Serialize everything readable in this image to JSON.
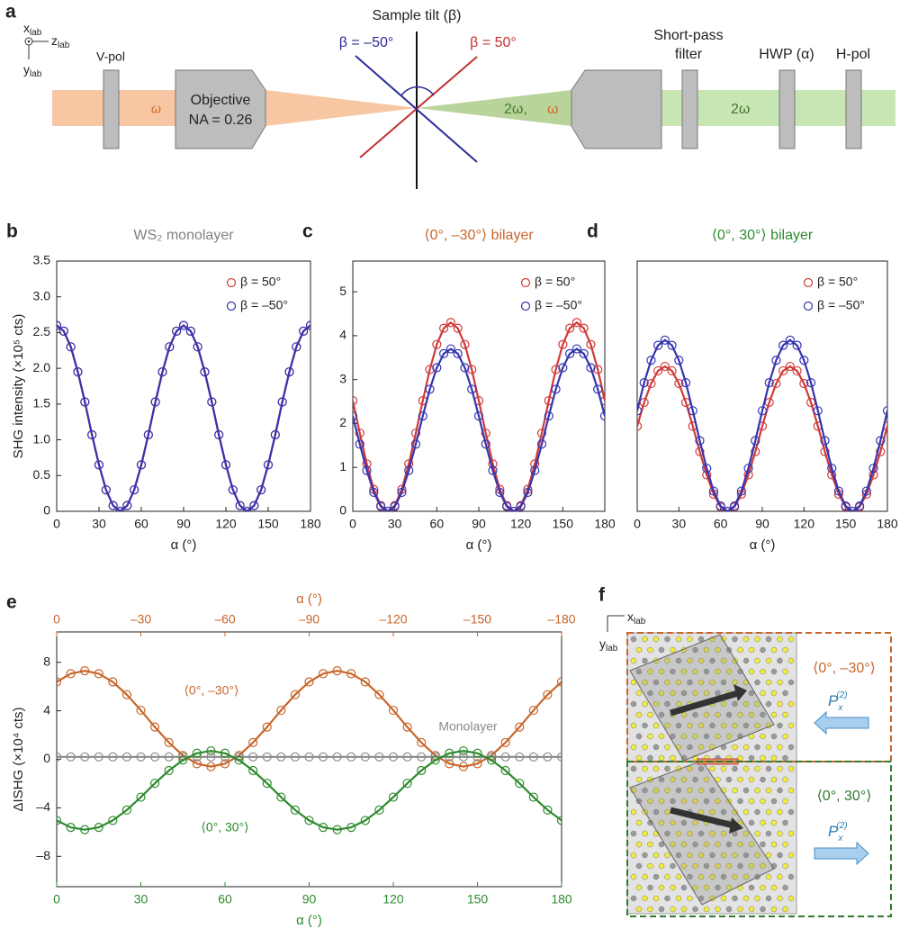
{
  "diagram_a": {
    "panel": "a",
    "axis_x": "x",
    "axis_z": "z",
    "axis_y": "y",
    "axis_sub": "lab",
    "vpol": "V-pol",
    "objective": "Objective",
    "na": "NA = 0.26",
    "omega": "ω",
    "tilt": "Sample tilt (β)",
    "beta_neg": "β = –50°",
    "beta_pos": "β = 50°",
    "two_omega_comma": "2ω,",
    "filter1": "Short-pass",
    "filter2": "filter",
    "hwp": "HWP (α)",
    "hpol": "H-pol",
    "two_omega": "2ω"
  },
  "diagram_f": {
    "panel": "f",
    "axis_x": "x",
    "axis_y": "y",
    "axis_sub": "lab",
    "top_label": "⟨0°, –30°⟩",
    "bottom_label": "⟨0°, 30°⟩",
    "p": "P",
    "p_sub": "x",
    "p_sup": "(2)"
  },
  "chart_data": [
    {
      "type": "line",
      "panel": "b",
      "title": "WS₂ monolayer",
      "title_color": "#808080",
      "xlabel": "α (°)",
      "ylabel": "SHG intensity (×10⁵ cts)",
      "legend": "upper right",
      "markers": true,
      "x": [
        0,
        5,
        10,
        15,
        20,
        25,
        30,
        35,
        40,
        45,
        50,
        55,
        60,
        65,
        70,
        75,
        80,
        85,
        90,
        95,
        100,
        105,
        110,
        115,
        120,
        125,
        130,
        135,
        140,
        145,
        150,
        155,
        160,
        165,
        170,
        175,
        180
      ],
      "xlim": [
        0,
        180
      ],
      "xticks": [
        0,
        30,
        60,
        90,
        120,
        150,
        180
      ],
      "ylim": [
        0,
        3.5
      ],
      "yticks": [
        0,
        0.5,
        {
          "value": 1,
          "label": "1.0"
        },
        1.5,
        {
          "value": 2,
          "label": "2.0"
        },
        2.5,
        {
          "value": 3,
          "label": "3.0"
        },
        3.5
      ],
      "series": [
        {
          "name": "β = 50°",
          "color": "#d03a3a",
          "values": [
            2.6,
            2.52,
            2.3,
            1.95,
            1.53,
            1.07,
            0.65,
            0.3,
            0.08,
            0,
            0.08,
            0.3,
            0.65,
            1.07,
            1.53,
            1.95,
            2.3,
            2.52,
            2.6,
            2.52,
            2.3,
            1.95,
            1.53,
            1.07,
            0.65,
            0.3,
            0.08,
            0,
            0.08,
            0.3,
            0.65,
            1.07,
            1.53,
            1.95,
            2.3,
            2.52,
            2.6
          ]
        },
        {
          "name": "β = –50°",
          "color": "#3535b0",
          "values": [
            2.6,
            2.52,
            2.3,
            1.95,
            1.53,
            1.07,
            0.65,
            0.3,
            0.08,
            0,
            0.08,
            0.3,
            0.65,
            1.07,
            1.53,
            1.95,
            2.3,
            2.52,
            2.6,
            2.52,
            2.3,
            1.95,
            1.53,
            1.07,
            0.65,
            0.3,
            0.08,
            0,
            0.08,
            0.3,
            0.65,
            1.07,
            1.53,
            1.95,
            2.3,
            2.52,
            2.6
          ]
        }
      ]
    },
    {
      "type": "line",
      "panel": "c",
      "title": "⟨0°, –30°⟩ bilayer",
      "title_color": "#c8652a",
      "xlabel": "α (°)",
      "legend": "upper right",
      "markers": true,
      "x": [
        0,
        5,
        10,
        15,
        20,
        25,
        30,
        35,
        40,
        45,
        50,
        55,
        60,
        65,
        70,
        75,
        80,
        85,
        90,
        95,
        100,
        105,
        110,
        115,
        120,
        125,
        130,
        135,
        140,
        145,
        150,
        155,
        160,
        165,
        170,
        175,
        180
      ],
      "xlim": [
        0,
        180
      ],
      "xticks": [
        0,
        30,
        60,
        90,
        120,
        150,
        180
      ],
      "ylim": [
        0,
        5.7
      ],
      "yticks": [
        0,
        1,
        2,
        3,
        4,
        5
      ],
      "series": [
        {
          "name": "β = 50°",
          "color": "#d03a3a",
          "values": [
            2.52,
            1.78,
            1.08,
            0.5,
            0.13,
            0,
            0.13,
            0.5,
            1.08,
            1.78,
            2.52,
            3.23,
            3.8,
            4.17,
            4.3,
            4.17,
            3.8,
            3.23,
            2.52,
            1.78,
            1.08,
            0.5,
            0.13,
            0,
            0.13,
            0.5,
            1.08,
            1.78,
            2.52,
            3.23,
            3.8,
            4.17,
            4.3,
            4.17,
            3.8,
            3.23,
            2.52
          ]
        },
        {
          "name": "β = –50°",
          "color": "#3535b0",
          "values": [
            2.17,
            1.53,
            0.93,
            0.43,
            0.11,
            0,
            0.11,
            0.43,
            0.93,
            1.53,
            2.17,
            2.78,
            3.27,
            3.59,
            3.7,
            3.59,
            3.27,
            2.78,
            2.17,
            1.53,
            0.93,
            0.43,
            0.11,
            0,
            0.11,
            0.43,
            0.93,
            1.53,
            2.17,
            2.78,
            3.27,
            3.59,
            3.7,
            3.59,
            3.27,
            2.78,
            2.17
          ]
        }
      ]
    },
    {
      "type": "line",
      "panel": "d",
      "title": "⟨0°, 30°⟩ bilayer",
      "title_color": "#2e8b2e",
      "xlabel": "α (°)",
      "legend": "upper right",
      "markers": true,
      "x": [
        0,
        5,
        10,
        15,
        20,
        25,
        30,
        35,
        40,
        45,
        50,
        55,
        60,
        65,
        70,
        75,
        80,
        85,
        90,
        95,
        100,
        105,
        110,
        115,
        120,
        125,
        130,
        135,
        140,
        145,
        150,
        155,
        160,
        165,
        170,
        175,
        180
      ],
      "xlim": [
        0,
        180
      ],
      "xticks": [
        0,
        30,
        60,
        90,
        120,
        150,
        180
      ],
      "ylim": [
        0,
        5.7
      ],
      "series": [
        {
          "name": "β = 50°",
          "color": "#d03a3a",
          "values": [
            1.94,
            2.48,
            2.91,
            3.2,
            3.3,
            3.2,
            2.91,
            2.48,
            1.94,
            1.36,
            0.83,
            0.39,
            0.1,
            0,
            0.1,
            0.39,
            0.83,
            1.36,
            1.94,
            2.48,
            2.91,
            3.2,
            3.3,
            3.2,
            2.91,
            2.48,
            1.94,
            1.36,
            0.83,
            0.39,
            0.1,
            0,
            0.1,
            0.39,
            0.83,
            1.36,
            1.94
          ]
        },
        {
          "name": "β = –50°",
          "color": "#3535b0",
          "values": [
            2.29,
            2.93,
            3.44,
            3.78,
            3.9,
            3.78,
            3.44,
            2.93,
            2.29,
            1.61,
            0.98,
            0.46,
            0.12,
            0,
            0.12,
            0.46,
            0.98,
            1.61,
            2.29,
            2.93,
            3.44,
            3.78,
            3.9,
            3.78,
            3.44,
            2.93,
            2.29,
            1.61,
            0.98,
            0.46,
            0.12,
            0,
            0.12,
            0.46,
            0.98,
            1.61,
            2.29
          ]
        }
      ]
    },
    {
      "type": "line",
      "panel": "e",
      "xlabel": "α (°)",
      "x2label": "α (°)",
      "ylabel": "ΔISHG (×10⁴ cts)",
      "markers": true,
      "xaxis_color": "#2e8b2e",
      "x2axis_color": "#c8652a",
      "x": [
        0,
        5,
        10,
        15,
        20,
        25,
        30,
        35,
        40,
        45,
        50,
        55,
        60,
        65,
        70,
        75,
        80,
        85,
        90,
        95,
        100,
        105,
        110,
        115,
        120,
        125,
        130,
        135,
        140,
        145,
        150,
        155,
        160,
        165,
        170,
        175,
        180
      ],
      "x2": [
        0,
        -5,
        -10,
        -15,
        -20,
        -25,
        -30,
        -35,
        -40,
        -45,
        -50,
        -55,
        -60,
        -65,
        -70,
        -75,
        -80,
        -85,
        -90,
        -95,
        -100,
        -105,
        -110,
        -115,
        -120,
        -125,
        -130,
        -135,
        -140,
        -145,
        -150,
        -155,
        -160,
        -165,
        -170,
        -175,
        -180
      ],
      "xlim": [
        0,
        180
      ],
      "xticks": [
        0,
        30,
        60,
        90,
        120,
        150,
        180
      ],
      "x2lim": [
        0,
        -180
      ],
      "x2ticks": [
        0,
        {
          "value": -30,
          "label": "–30"
        },
        {
          "value": -60,
          "label": "–60"
        },
        {
          "value": -90,
          "label": "–90"
        },
        {
          "value": -120,
          "label": "–120"
        },
        {
          "value": -150,
          "label": "–150"
        },
        {
          "value": -180,
          "label": "–180"
        }
      ],
      "ylim": [
        -10.5,
        10.5
      ],
      "yticks": [
        {
          "value": -8,
          "label": "–8"
        },
        {
          "value": -4,
          "label": "–4"
        },
        0,
        4,
        8
      ],
      "series": [
        {
          "name": "⟨0°, –30°⟩",
          "color": "#c8652a",
          "axis": "x2",
          "values": [
            6.38,
            7.06,
            7.3,
            7.06,
            6.38,
            5.33,
            4.04,
            2.66,
            1.38,
            0.32,
            -0.36,
            -0.6,
            -0.36,
            0.32,
            1.38,
            2.66,
            4.04,
            5.33,
            6.38,
            7.06,
            7.3,
            7.06,
            6.38,
            5.33,
            4.04,
            2.66,
            1.38,
            0.32,
            -0.36,
            -0.6,
            -0.36,
            0.32,
            1.38,
            2.66,
            4.04,
            5.33,
            6.38
          ]
        },
        {
          "name": "Monolayer",
          "color": "#8a8a8a",
          "values": [
            0.2,
            0.2,
            0.2,
            0.2,
            0.2,
            0.2,
            0.2,
            0.2,
            0.2,
            0.2,
            0.2,
            0.2,
            0.2,
            0.2,
            0.2,
            0.2,
            0.2,
            0.2,
            0.2,
            0.2,
            0.2,
            0.2,
            0.2,
            0.2,
            0.2,
            0.2,
            0.2,
            0.2,
            0.2,
            0.2,
            0.2,
            0.2,
            0.2,
            0.2,
            0.2,
            0.2,
            0.2
          ]
        },
        {
          "name": "⟨0°, 30°⟩",
          "color": "#2e8b2e",
          "values": [
            -5.04,
            -5.61,
            -5.8,
            -5.61,
            -5.04,
            -4.18,
            -3.12,
            -1.98,
            -0.93,
            -0.06,
            0.5,
            0.7,
            0.5,
            -0.06,
            -0.93,
            -1.98,
            -3.12,
            -4.18,
            -5.04,
            -5.61,
            -5.8,
            -5.61,
            -5.04,
            -4.18,
            -3.12,
            -1.98,
            -0.93,
            -0.06,
            0.5,
            0.7,
            0.5,
            -0.06,
            -0.93,
            -1.98,
            -3.12,
            -4.18,
            -5.04
          ]
        }
      ]
    }
  ]
}
